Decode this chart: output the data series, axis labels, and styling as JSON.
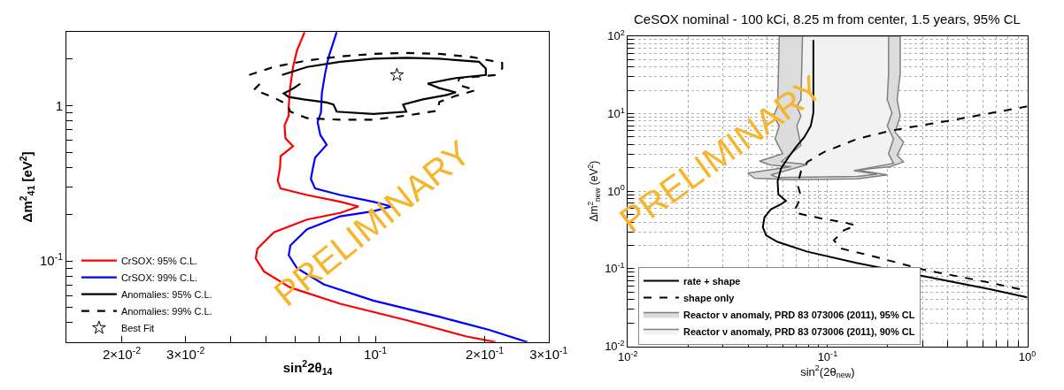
{
  "chart_data": [
    {
      "type": "line",
      "xlabel": "sin$^{2}$2θ$_{14}$",
      "ylabel": "Δm$^{2}$$_{41}$ [eV$^{2}$]",
      "log": "xy",
      "xlim": [
        0.0141,
        0.3
      ],
      "ylim": [
        0.03,
        3
      ],
      "xticks": [
        {
          "value": 0.02,
          "label": "2×10$^{-2}$"
        },
        {
          "value": 0.03,
          "label": "3×10$^{-2}$"
        },
        {
          "value": 0.04,
          "label": null
        },
        {
          "value": 0.05,
          "label": null
        },
        {
          "value": 0.06,
          "label": null
        },
        {
          "value": 0.07,
          "label": null
        },
        {
          "value": 0.08,
          "label": null
        },
        {
          "value": 0.09,
          "label": null
        },
        {
          "value": 0.1,
          "label": "10$^{-1}$"
        },
        {
          "value": 0.2,
          "label": "2×10$^{-1}$"
        },
        {
          "value": 0.3,
          "label": "3×10$^{-1}$"
        }
      ],
      "yticks": [
        {
          "value": 0.04,
          "label": null
        },
        {
          "value": 0.05,
          "label": null
        },
        {
          "value": 0.06,
          "label": null
        },
        {
          "value": 0.07,
          "label": null
        },
        {
          "value": 0.08,
          "label": null
        },
        {
          "value": 0.09,
          "label": null
        },
        {
          "value": 0.1,
          "label": "10$^{-1}$"
        },
        {
          "value": 0.2,
          "label": null
        },
        {
          "value": 0.3,
          "label": null
        },
        {
          "value": 0.4,
          "label": null
        },
        {
          "value": 0.5,
          "label": null
        },
        {
          "value": 0.6,
          "label": null
        },
        {
          "value": 0.7,
          "label": null
        },
        {
          "value": 0.8,
          "label": null
        },
        {
          "value": 0.9,
          "label": null
        },
        1,
        {
          "value": 2,
          "label": null
        }
      ],
      "legend": "bottom left",
      "annotations": [
        "PRELIMINARY"
      ],
      "series": [
        {
          "name": "CrSOX: 95% C.L.",
          "color": "#ff0000",
          "x": [
            0.0638,
            0.0608,
            0.0593,
            0.0583,
            0.0577,
            0.0577,
            0.0562,
            0.0565,
            0.0593,
            0.0548,
            0.0546,
            0.0538,
            0.0548,
            0.0648,
            0.08,
            0.0898,
            0.08,
            0.0648,
            0.0525,
            0.0473,
            0.0468,
            0.0493,
            0.0583,
            0.08,
            0.1216,
            0.1774,
            0.2143
          ],
          "values": [
            2.98,
            2.27,
            1.78,
            1.34,
            1.0,
            0.865,
            0.749,
            0.618,
            0.548,
            0.474,
            0.4,
            0.33,
            0.293,
            0.266,
            0.241,
            0.2245,
            0.204,
            0.185,
            0.153,
            0.12,
            0.104,
            0.0857,
            0.0674,
            0.053,
            0.0416,
            0.0327,
            0.03
          ]
        },
        {
          "name": "CrSOX: 99% C.L.",
          "color": "#0000ff",
          "x": [
            0.0782,
            0.0743,
            0.0727,
            0.0712,
            0.0708,
            0.0693,
            0.0705,
            0.0734,
            0.0682,
            0.0673,
            0.0664,
            0.0682,
            0.08,
            0.0986,
            0.1107,
            0.0986,
            0.08,
            0.0648,
            0.0583,
            0.0577,
            0.0608,
            0.072,
            0.0986,
            0.15,
            0.2056,
            0.262
          ],
          "values": [
            2.98,
            2.06,
            1.62,
            1.21,
            0.908,
            0.786,
            0.648,
            0.561,
            0.463,
            0.4,
            0.338,
            0.293,
            0.266,
            0.241,
            0.2245,
            0.209,
            0.194,
            0.16,
            0.126,
            0.109,
            0.0899,
            0.0707,
            0.0556,
            0.0437,
            0.036,
            0.03
          ]
        },
        {
          "name": "Anomalies: 95% C.L.",
          "color": "#000000",
          "x": [
            0.0553,
            0.0648,
            0.08,
            0.0986,
            0.1216,
            0.15,
            0.193,
            0.2014,
            0.2014,
            0.1666,
            0.1393,
            0.15,
            0.1666,
            0.1563,
            0.1351,
            0.1192,
            0.1216,
            0.0986,
            0.0782,
            0.0766,
            0.0734,
            0.0634,
            0.0577,
            0.0559,
            0.0596,
            0.0621
          ],
          "values": [
            1.58,
            1.78,
            1.92,
            2.01,
            2.04,
            2.01,
            1.92,
            1.74,
            1.58,
            1.51,
            1.39,
            1.3,
            1.22,
            1.17,
            1.1,
            1.02,
            0.917,
            0.887,
            0.917,
            1.02,
            1.05,
            1.1,
            1.14,
            1.2,
            1.3,
            1.39
          ]
        },
        {
          "name": "Anomalies: 99% C.L.",
          "color": "#000000",
          "line_style": "dashed",
          "x": [
            0.0449,
            0.0525,
            0.0648,
            0.08,
            0.0986,
            0.1216,
            0.15,
            0.185,
            0.2234,
            0.2234,
            0.2143,
            0.1702,
            0.1683,
            0.1888,
            0.1666,
            0.15,
            0.1484,
            0.1216,
            0.0986,
            0.08,
            0.0648,
            0.0583,
            0.0571,
            0.0525,
            0.0463,
            0.0483
          ],
          "values": [
            1.58,
            1.78,
            1.96,
            2.08,
            2.16,
            2.19,
            2.16,
            2.06,
            1.89,
            1.74,
            1.58,
            1.51,
            1.37,
            1.26,
            1.16,
            1.06,
            0.93,
            0.865,
            0.813,
            0.813,
            0.833,
            0.917,
            1.02,
            1.13,
            1.27,
            1.4
          ]
        },
        {
          "name": "Best Fit",
          "type": "scatter",
          "marker": "star",
          "color": "#000000",
          "x": [
            0.1146
          ],
          "values": [
            1.58
          ]
        }
      ]
    },
    {
      "type": "line",
      "title": "CeSOX nominal - 100 kCi, 8.25 m from center, 1.5 years, 95% CL",
      "xlabel": "sin$^{2}$(2θ$_{new}$)",
      "ylabel": "Δm$^{2}$$_{new}$ (eV$^{2}$)",
      "log": "xy",
      "xlim": [
        0.01,
        1
      ],
      "ylim": [
        0.01,
        100
      ],
      "grid": true,
      "xticks": [
        {
          "value": 0.01,
          "label": "10$^{-2}$"
        },
        {
          "value": 0.02,
          "label": null
        },
        {
          "value": 0.03,
          "label": null
        },
        {
          "value": 0.04,
          "label": null
        },
        {
          "value": 0.05,
          "label": null
        },
        {
          "value": 0.06,
          "label": null
        },
        {
          "value": 0.07,
          "label": null
        },
        {
          "value": 0.08,
          "label": null
        },
        {
          "value": 0.09,
          "label": null
        },
        {
          "value": 0.1,
          "label": "10$^{-1}$"
        },
        {
          "value": 0.2,
          "label": null
        },
        {
          "value": 0.3,
          "label": null
        },
        {
          "value": 0.4,
          "label": null
        },
        {
          "value": 0.5,
          "label": null
        },
        {
          "value": 0.6,
          "label": null
        },
        {
          "value": 0.7,
          "label": null
        },
        {
          "value": 0.8,
          "label": null
        },
        {
          "value": 0.9,
          "label": null
        },
        {
          "value": 1,
          "label": "10$^{0}$"
        }
      ],
      "yticks": [
        {
          "value": 0.01,
          "label": "10$^{-2}$"
        },
        {
          "value": 0.02,
          "label": null
        },
        {
          "value": 0.03,
          "label": null
        },
        {
          "value": 0.04,
          "label": null
        },
        {
          "value": 0.05,
          "label": null
        },
        {
          "value": 0.06,
          "label": null
        },
        {
          "value": 0.07,
          "label": null
        },
        {
          "value": 0.08,
          "label": null
        },
        {
          "value": 0.09,
          "label": null
        },
        {
          "value": 0.1,
          "label": "10$^{-1}$"
        },
        {
          "value": 0.2,
          "label": null
        },
        {
          "value": 0.3,
          "label": null
        },
        {
          "value": 0.4,
          "label": null
        },
        {
          "value": 0.5,
          "label": null
        },
        {
          "value": 0.6,
          "label": null
        },
        {
          "value": 0.7,
          "label": null
        },
        {
          "value": 0.8,
          "label": null
        },
        {
          "value": 0.9,
          "label": null
        },
        {
          "value": 1,
          "label": "10$^{0}$"
        },
        {
          "value": 2,
          "label": null
        },
        {
          "value": 3,
          "label": null
        },
        {
          "value": 4,
          "label": null
        },
        {
          "value": 5,
          "label": null
        },
        {
          "value": 6,
          "label": null
        },
        {
          "value": 7,
          "label": null
        },
        {
          "value": 8,
          "label": null
        },
        {
          "value": 9,
          "label": null
        },
        {
          "value": 10,
          "label": "10$^{1}$"
        },
        {
          "value": 20,
          "label": null
        },
        {
          "value": 30,
          "label": null
        },
        {
          "value": 40,
          "label": null
        },
        {
          "value": 50,
          "label": null
        },
        {
          "value": 60,
          "label": null
        },
        {
          "value": 70,
          "label": null
        },
        {
          "value": 80,
          "label": null
        },
        {
          "value": 90,
          "label": null
        },
        {
          "value": 100,
          "label": "10$^{2}$"
        }
      ],
      "legend": "bottom left",
      "annotations": [
        "PRELIMINARY"
      ],
      "series": [
        {
          "name": "Reactor ν anomaly, PRD 83 073006 (2011), 95% CL",
          "type": "area",
          "color": "#dcdcdc",
          "x": [
            0.0573,
            0.0567,
            0.0562,
            0.0537,
            0.0573,
            0.0546,
            0.0596,
            0.0456,
            0.0521,
            0.0656,
            0.0399,
            0.0431,
            0.0656,
            0.1408,
            0.199,
            0.1408,
            0.206,
            0.24,
            0.223,
            0.24,
            0.218,
            0.231,
            0.223,
            0.231,
            0.231,
            0.0573
          ],
          "values": [
            100,
            32.8,
            12.4,
            9.3,
            6.95,
            4.72,
            3.05,
            2.44,
            2.17,
            2.07,
            1.71,
            1.47,
            1.4,
            1.44,
            1.62,
            1.88,
            2.07,
            2.39,
            2.9,
            4.29,
            5.73,
            9.3,
            15.1,
            32.8,
            100,
            100
          ]
        },
        {
          "name": "Reactor ν anomaly, PRD 83 073006 (2011), 90% CL",
          "type": "area",
          "color": "#f2f2f2",
          "x": [
            0.0749,
            0.0741,
            0.0735,
            0.0702,
            0.0735,
            0.0702,
            0.0735,
            0.0585,
            0.0793,
            0.0521,
            0.0562,
            0.1408,
            0.177,
            0.1355,
            0.214,
            0.202,
            0.214,
            0.199,
            0.21,
            0.199,
            0.202,
            0.202,
            0.0749
          ],
          "values": [
            100,
            32.8,
            15.1,
            12.4,
            9.3,
            6.95,
            3.88,
            2.39,
            2.21,
            1.62,
            1.5,
            1.55,
            1.65,
            1.84,
            2.28,
            3.05,
            4.72,
            6.95,
            10.2,
            15.1,
            32.8,
            100,
            100
          ]
        },
        {
          "name": "rate + shape",
          "color": "#000000",
          "x": [
            0.0849,
            0.0849,
            0.0824,
            0.0764,
            0.0694,
            0.0631,
            0.0585,
            0.0562,
            0.0567,
            0.0619,
            0.0585,
            0.0521,
            0.0483,
            0.0474,
            0.0492,
            0.0562,
            0.0793,
            0.1408,
            0.302,
            0.649,
            1.0
          ],
          "values": [
            89,
            10.3,
            6.95,
            4.95,
            3.7,
            2.64,
            1.97,
            1.34,
            0.908,
            0.748,
            0.679,
            0.587,
            0.46,
            0.344,
            0.27,
            0.222,
            0.166,
            0.1186,
            0.0804,
            0.0546,
            0.0428
          ]
        },
        {
          "name": "shape only",
          "color": "#000000",
          "line_style": "dashed",
          "x": [
            1.0,
            0.443,
            0.206,
            0.1408,
            0.0961,
            0.0793,
            0.0735,
            0.0708,
            0.0735,
            0.0708,
            0.0681,
            0.0735,
            0.0961,
            0.1208,
            0.138,
            0.1208,
            0.1076,
            0.1163,
            0.1704,
            0.302,
            0.649,
            1.0
          ],
          "values": [
            12.4,
            8.43,
            6.01,
            4.72,
            3.2,
            2.39,
            1.79,
            1.21,
            0.865,
            0.679,
            0.559,
            0.507,
            0.438,
            0.398,
            0.361,
            0.313,
            0.234,
            0.183,
            0.144,
            0.0976,
            0.0662,
            0.052
          ]
        }
      ]
    }
  ]
}
